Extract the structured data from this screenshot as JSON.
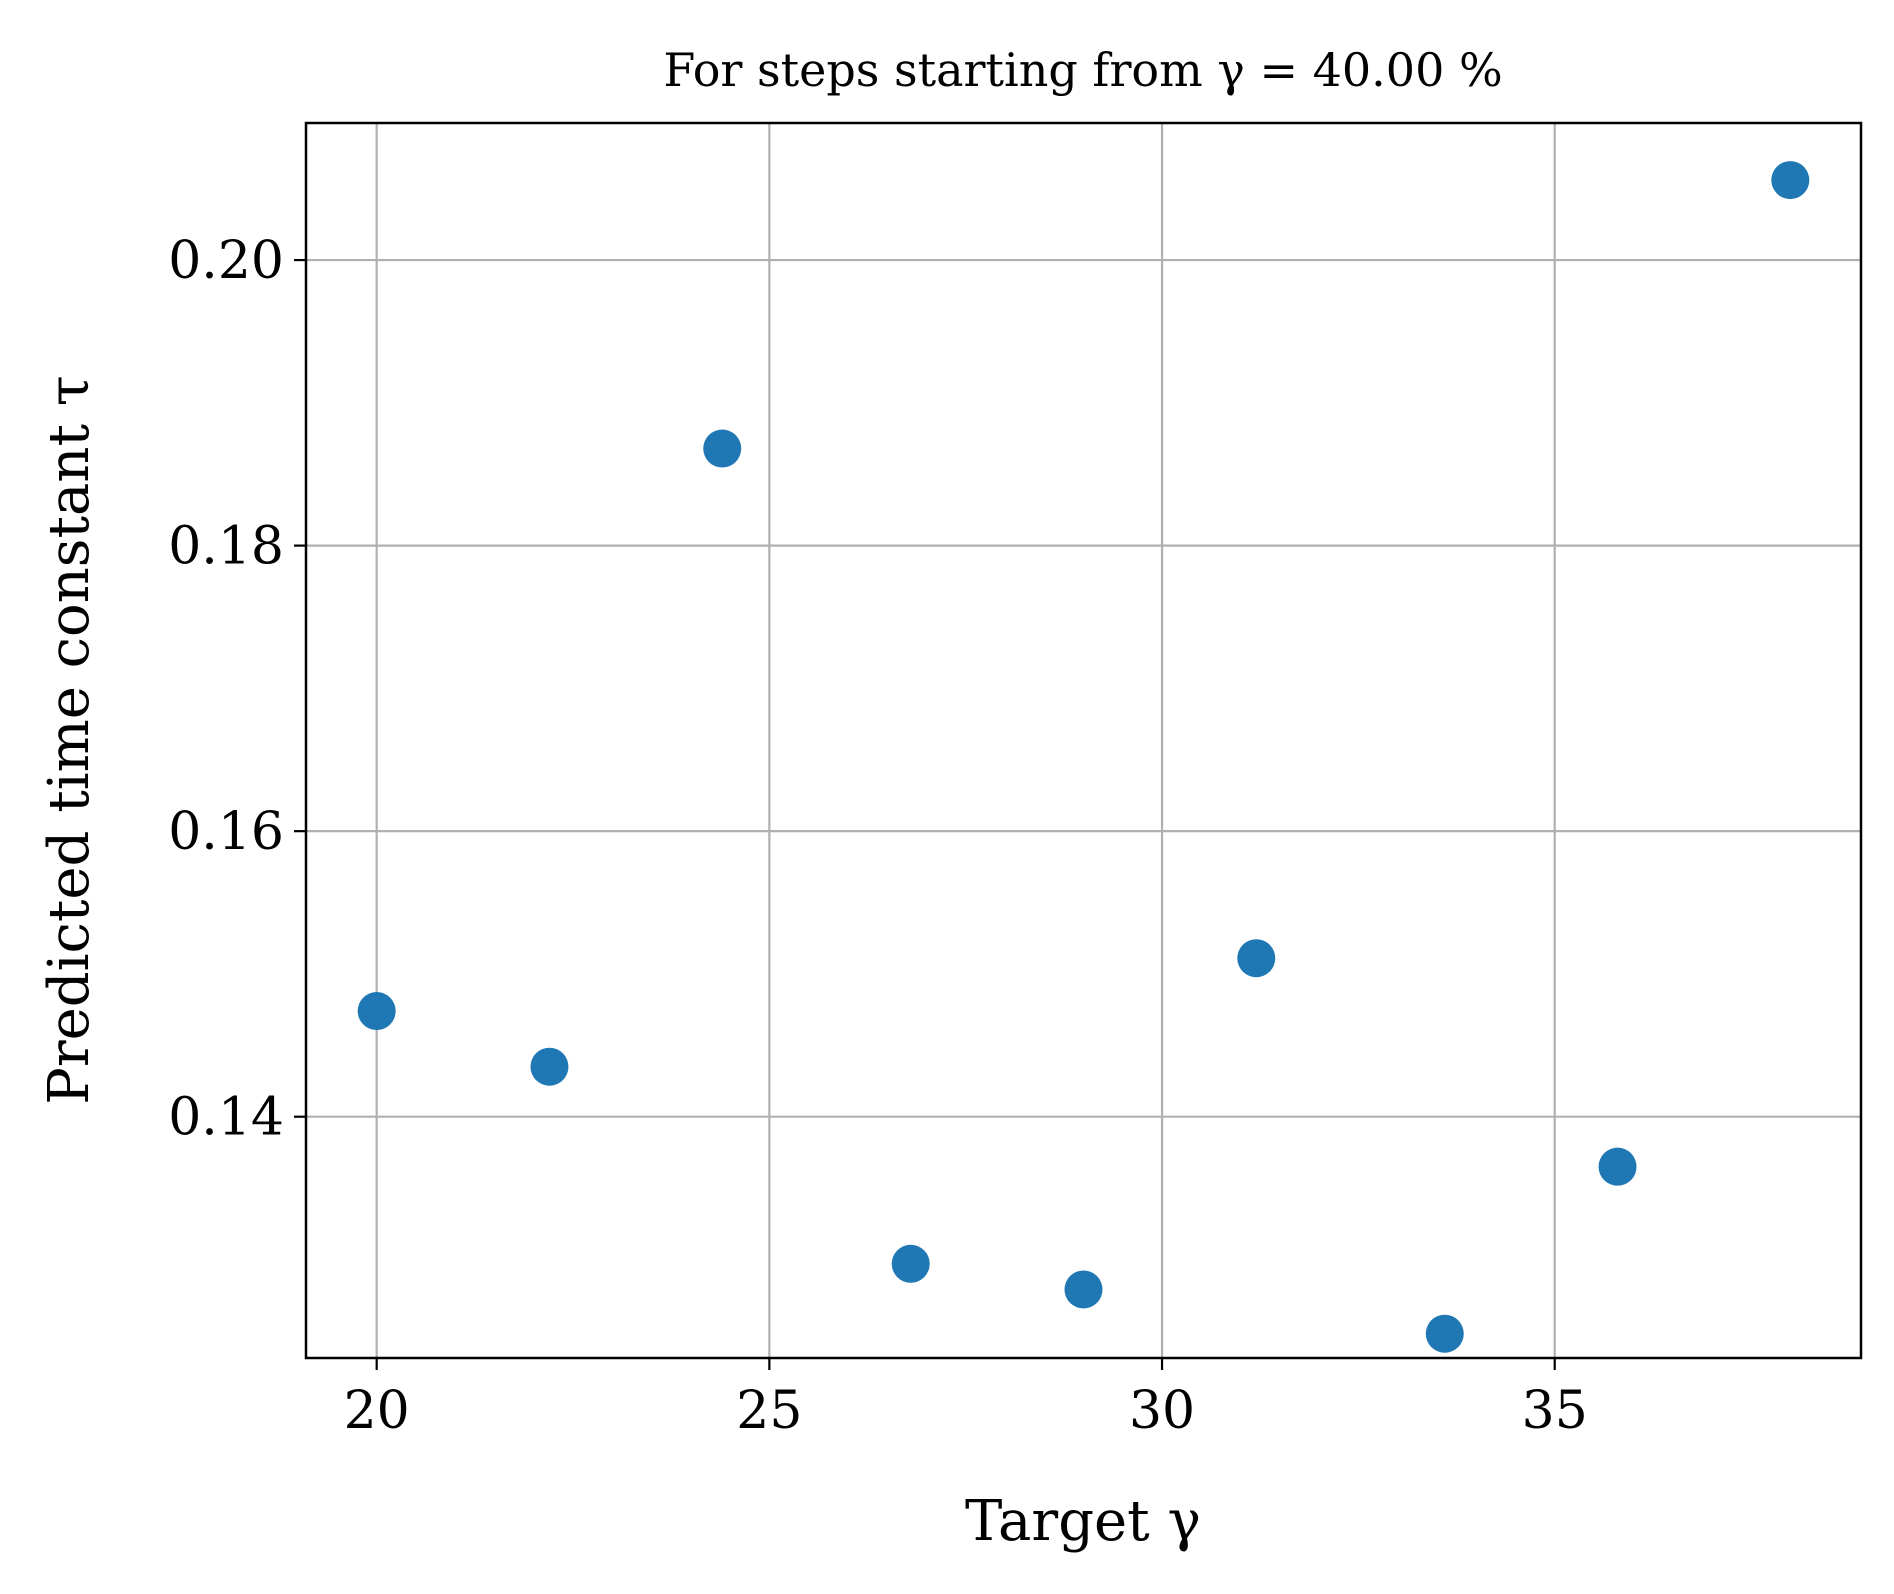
{
  "chart_data": {
    "type": "scatter",
    "title": "For steps starting from γ = 40.00 %",
    "xlabel": "Target γ",
    "ylabel": "Predicted time constant τ",
    "xlim": [
      19.1,
      38.9
    ],
    "ylim": [
      0.1231,
      0.2096
    ],
    "xticks": [
      20,
      25,
      30,
      35
    ],
    "xtick_labels": [
      "20",
      "25",
      "30",
      "35"
    ],
    "yticks": [
      0.14,
      0.16,
      0.18,
      0.2
    ],
    "ytick_labels": [
      "0.14",
      "0.16",
      "0.18",
      "0.20"
    ],
    "grid": true,
    "legend": "none",
    "marker_color": "#1f77b4",
    "series": [
      {
        "x": [
          20.0,
          22.2,
          24.4,
          26.8,
          29.0,
          31.2,
          33.6,
          35.8,
          38.0
        ],
        "y": [
          0.1474,
          0.1435,
          0.1868,
          0.1297,
          0.1279,
          0.1511,
          0.1248,
          0.1365,
          0.2056
        ]
      }
    ]
  }
}
